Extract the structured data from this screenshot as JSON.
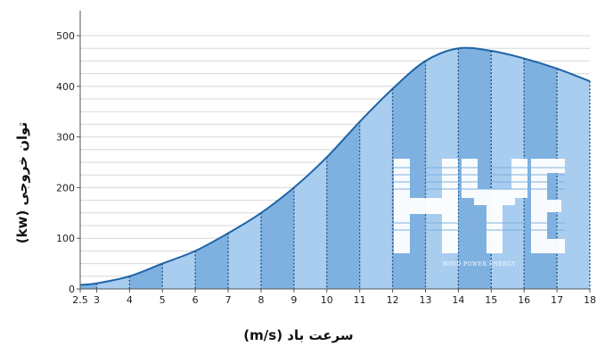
{
  "chart_data": {
    "type": "area",
    "title": "",
    "xlabel": "سرعت باد (m/s)",
    "ylabel": "توان خروجی (kw)",
    "x": [
      2.5,
      3,
      4,
      5,
      6,
      7,
      8,
      9,
      10,
      11,
      12,
      13,
      14,
      15,
      16,
      17,
      18
    ],
    "x_tick_labels": [
      "2.5",
      "3",
      "4",
      "5",
      "6",
      "7",
      "8",
      "9",
      "10",
      "11",
      "12",
      "13",
      "14",
      "15",
      "16",
      "17",
      "18"
    ],
    "series": [
      {
        "values": [
          8,
          11,
          25,
          50,
          75,
          110,
          150,
          200,
          260,
          330,
          395,
          450,
          475,
          470,
          455,
          435,
          410
        ]
      }
    ],
    "xlim": [
      2.5,
      18
    ],
    "ylim": [
      0,
      500
    ],
    "y_ticks": [
      0,
      100,
      200,
      300,
      400,
      500
    ],
    "grid": true,
    "colors": {
      "line": "#1e64a8",
      "fill_dark": "#7fb1e0",
      "fill_light": "#a9cdef",
      "grid": "#d8d8d8"
    }
  },
  "watermark": {
    "logo": "HYE",
    "subtitle": "WIND POWER ENERGY"
  }
}
